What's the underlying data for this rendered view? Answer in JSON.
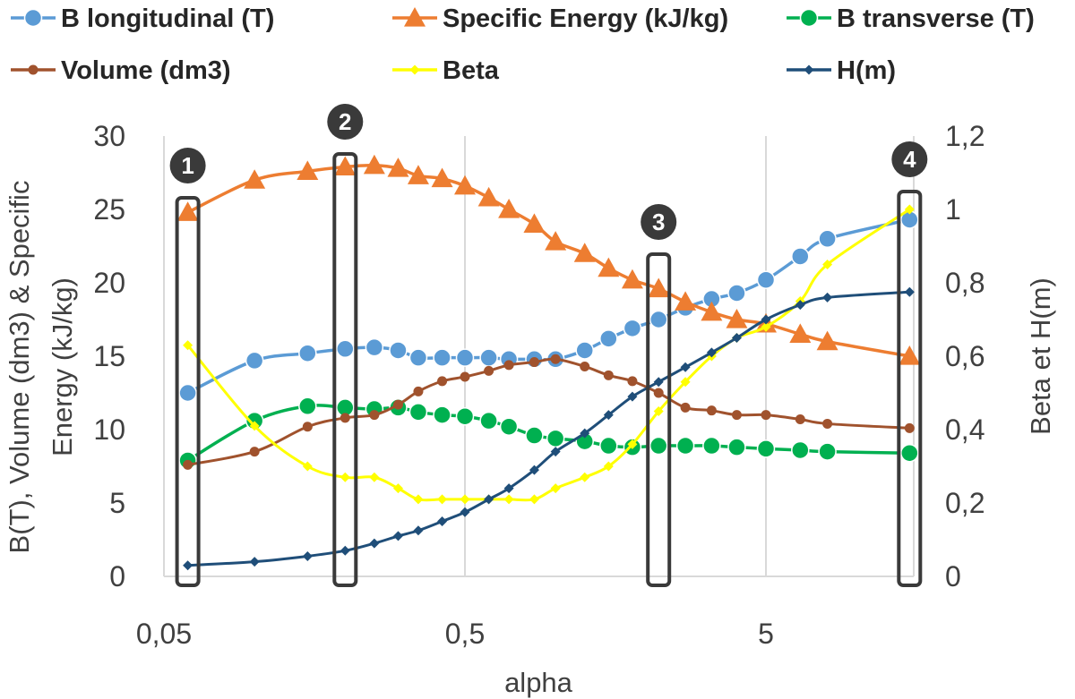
{
  "chart_data": {
    "type": "line",
    "x_scale": "log",
    "xlabel": "alpha",
    "ylabel": "B(T), Volume (dm3) & Specific Energy (kJ/kg)",
    "ylabel_lines": [
      "B(T), Volume (dm3) & Specific",
      "Energy (kJ/kg)"
    ],
    "y2label": "Beta et H(m)",
    "xlim": [
      0.05,
      20
    ],
    "ylim": [
      0,
      30
    ],
    "y2lim": [
      0,
      1.2
    ],
    "x_ticks": [
      0.05,
      0.5,
      5
    ],
    "x_tick_labels": [
      "0,05",
      "0,5",
      "5"
    ],
    "y_ticks": [
      "0",
      "5",
      "10",
      "15",
      "20",
      "25",
      "30"
    ],
    "y2_ticks": [
      "0",
      "0,2",
      "0,4",
      "0,6",
      "0,8",
      "1",
      "1,2"
    ],
    "grid": "vertical",
    "legend_position": "top",
    "x": [
      0.06,
      0.1,
      0.15,
      0.2,
      0.25,
      0.3,
      0.35,
      0.42,
      0.5,
      0.6,
      0.7,
      0.85,
      1.0,
      1.25,
      1.5,
      1.8,
      2.2,
      2.7,
      3.3,
      4.0,
      5.0,
      6.5,
      8.0,
      15.0
    ],
    "series": [
      {
        "name": "B longitudinal (T)",
        "axis": "left",
        "color": "#5b9bd5",
        "marker": "circle",
        "values": [
          12.5,
          14.7,
          15.2,
          15.5,
          15.6,
          15.4,
          14.9,
          14.9,
          14.9,
          14.9,
          14.8,
          14.8,
          14.8,
          15.4,
          16.2,
          16.9,
          17.5,
          18.3,
          18.9,
          19.3,
          20.2,
          21.8,
          23.0,
          24.3
        ]
      },
      {
        "name": "Specific Energy (kJ/kg)",
        "axis": "left",
        "color": "#ed7d31",
        "marker": "triangle",
        "values": [
          24.8,
          27.0,
          27.6,
          27.9,
          28.0,
          27.8,
          27.3,
          27.1,
          26.6,
          25.8,
          25.0,
          24.0,
          22.8,
          22.0,
          21.0,
          20.2,
          19.6,
          18.7,
          18.0,
          17.5,
          17.2,
          16.5,
          16.0,
          15.0
        ]
      },
      {
        "name": "B transverse (T)",
        "axis": "left",
        "color": "#00b050",
        "marker": "circle",
        "values": [
          7.9,
          10.6,
          11.6,
          11.5,
          11.4,
          11.5,
          11.2,
          11.0,
          10.9,
          10.6,
          10.2,
          9.6,
          9.4,
          9.2,
          8.9,
          8.8,
          8.9,
          8.9,
          8.9,
          8.8,
          8.7,
          8.6,
          8.5,
          8.4
        ]
      },
      {
        "name": "Volume (dm3)",
        "axis": "left",
        "color": "#a0522d",
        "marker": "dot",
        "values": [
          7.6,
          8.5,
          10.2,
          10.8,
          11.0,
          11.7,
          12.6,
          13.3,
          13.6,
          14.0,
          14.4,
          14.6,
          14.8,
          14.3,
          13.7,
          13.3,
          12.5,
          11.5,
          11.3,
          11.0,
          11.0,
          10.7,
          10.4,
          10.1
        ]
      },
      {
        "name": "Beta",
        "axis": "right",
        "color": "#ffff00",
        "marker": "diamond",
        "values": [
          0.63,
          0.41,
          0.3,
          0.27,
          0.27,
          0.24,
          0.21,
          0.21,
          0.21,
          0.21,
          0.21,
          0.21,
          0.24,
          0.27,
          0.3,
          0.36,
          0.45,
          0.53,
          0.6,
          0.65,
          0.68,
          0.75,
          0.85,
          1.0
        ]
      },
      {
        "name": "H(m)",
        "axis": "right",
        "color": "#1f4e79",
        "marker": "diamond",
        "values": [
          0.03,
          0.04,
          0.055,
          0.07,
          0.09,
          0.11,
          0.125,
          0.15,
          0.175,
          0.21,
          0.24,
          0.29,
          0.34,
          0.39,
          0.44,
          0.49,
          0.53,
          0.57,
          0.61,
          0.65,
          0.7,
          0.74,
          0.76,
          0.775
        ]
      }
    ],
    "annotations": [
      {
        "label": "1",
        "x": 0.06
      },
      {
        "label": "2",
        "x": 0.2
      },
      {
        "label": "3",
        "x": 2.2
      },
      {
        "label": "4",
        "x": 15.0
      }
    ],
    "annotation_style": {
      "box_color": "#3a3a3a",
      "badge_color": "#3a3a3a",
      "label_color": "#ffffff"
    }
  }
}
